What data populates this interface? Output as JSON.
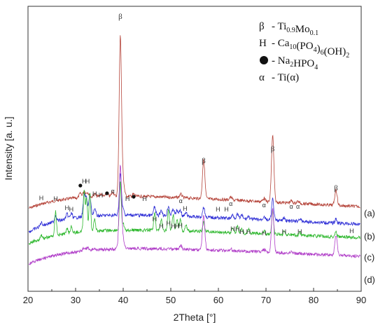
{
  "chart_data": {
    "type": "line",
    "xlabel": "2Theta [°]",
    "ylabel": "Intensity [a. u.]",
    "xlim": [
      20,
      90
    ],
    "x_ticks": [
      "20",
      "30",
      "40",
      "50",
      "60",
      "70",
      "80",
      "90"
    ],
    "grid": false,
    "legend_placement": "top-right",
    "legend": [
      {
        "symbol": "β",
        "text": "- Ti",
        "sub1": "0.9",
        "mid": "Mo",
        "sub2": "0.1",
        "tail": ""
      },
      {
        "symbol": "H",
        "text": "- Ca",
        "sub1": "10",
        "mid": "(PO",
        "sub2": "4",
        "tail": ")6(OH)2"
      },
      {
        "symbol": "●",
        "text": "- Na",
        "sub1": "2",
        "mid": "HPO",
        "sub2": "4",
        "tail": ""
      },
      {
        "symbol": "α",
        "text": "- Ti(α)",
        "sub1": "",
        "mid": "",
        "sub2": "",
        "tail": ""
      }
    ],
    "series": [
      {
        "name": "(a)",
        "color": "#b5443a"
      },
      {
        "name": "(b)",
        "color": "#2f2fd6"
      },
      {
        "name": "(c)",
        "color": "#2fb82f"
      },
      {
        "name": "(d)",
        "color": "#b03dc8"
      }
    ],
    "peaks_a": [
      {
        "x": 39.4,
        "label": "β"
      },
      {
        "x": 56.9,
        "label": "β"
      },
      {
        "x": 71.4,
        "label": "β"
      },
      {
        "x": 84.7,
        "label": "β"
      },
      {
        "x": 31.8,
        "label": "H"
      },
      {
        "x": 32.5,
        "label": "H"
      },
      {
        "x": 34.0,
        "label": "H"
      },
      {
        "x": 35.3,
        "label": "H"
      },
      {
        "x": 31.0,
        "label": "●"
      },
      {
        "x": 36.6,
        "label": "●"
      },
      {
        "x": 42.2,
        "label": "●"
      },
      {
        "x": 37.8,
        "label": "α"
      },
      {
        "x": 40.9,
        "label": "H"
      },
      {
        "x": 44.5,
        "label": "H"
      },
      {
        "x": 52.1,
        "label": "α"
      },
      {
        "x": 53.0,
        "label": "H"
      },
      {
        "x": 59.9,
        "label": "H"
      },
      {
        "x": 61.7,
        "label": "H"
      },
      {
        "x": 62.6,
        "label": "α"
      },
      {
        "x": 69.6,
        "label": "α"
      },
      {
        "x": 75.3,
        "label": "α"
      },
      {
        "x": 76.7,
        "label": "α"
      }
    ],
    "peaks_b": [
      {
        "x": 22.8,
        "label": "H"
      },
      {
        "x": 25.8,
        "label": "H"
      },
      {
        "x": 28.2,
        "label": "H"
      },
      {
        "x": 29.1,
        "label": "H"
      },
      {
        "x": 46.6,
        "label": "H"
      },
      {
        "x": 48.0,
        "label": "H"
      },
      {
        "x": 49.5,
        "label": "H"
      },
      {
        "x": 50.5,
        "label": "H"
      },
      {
        "x": 51.3,
        "label": "H"
      },
      {
        "x": 52.0,
        "label": "H"
      },
      {
        "x": 63.0,
        "label": "H"
      },
      {
        "x": 64.0,
        "label": "H"
      },
      {
        "x": 64.9,
        "label": "H"
      },
      {
        "x": 66.3,
        "label": "H"
      },
      {
        "x": 69.6,
        "label": "H"
      },
      {
        "x": 73.8,
        "label": "H"
      },
      {
        "x": 77.1,
        "label": "H"
      },
      {
        "x": 88.0,
        "label": "H"
      }
    ]
  }
}
